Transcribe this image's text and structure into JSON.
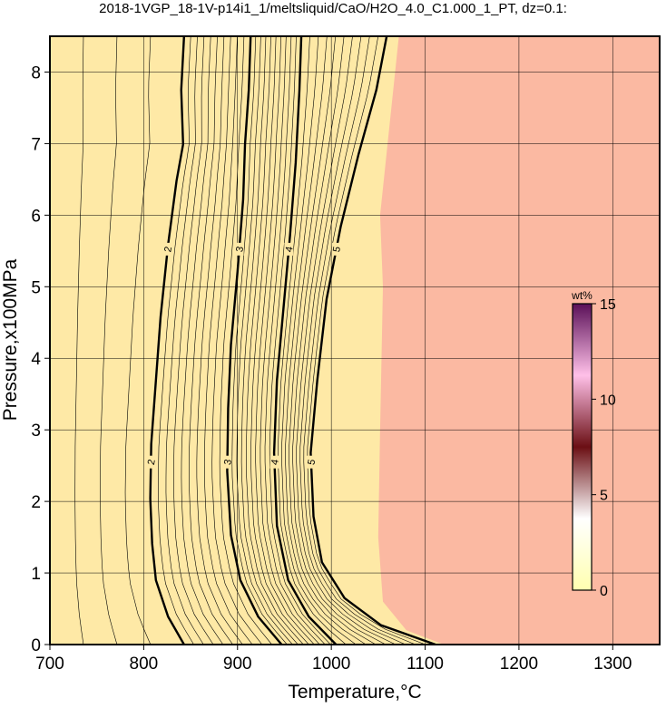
{
  "chart_data": {
    "type": "contour",
    "title": "2018-1VGP_18-1V-p14i1_1/meltsliquid/CaO/H2O_4.0_C1.000_1_PT, dz=0.1:",
    "x_label": "Temperature,°C",
    "y_label": "Pressure,x100MPa",
    "xlim": [
      700,
      1350
    ],
    "ylim": [
      0,
      8.5
    ],
    "xticks": [
      700,
      800,
      900,
      1000,
      1100,
      1200,
      1300
    ],
    "yticks": [
      0,
      1,
      2,
      3,
      4,
      5,
      6,
      7,
      8
    ],
    "grid": true,
    "low_color": "#fee9a6",
    "high_color": "#fbb9a2",
    "region_boundary": {
      "x": [
        1120,
        1080,
        1055,
        1050,
        1052,
        1055,
        1052,
        1060,
        1072
      ],
      "y": [
        0,
        0.2,
        0.6,
        1.5,
        3,
        5,
        6,
        7,
        8.5
      ]
    },
    "series": [
      {
        "name": "2",
        "color": "#000000",
        "x": [
          843,
          826,
          813,
          809,
          807,
          808,
          813,
          818,
          826,
          835,
          842,
          840,
          843
        ],
        "y": [
          0,
          0.39,
          0.9,
          1.41,
          2.04,
          2.8,
          3.69,
          4.58,
          5.59,
          6.48,
          6.99,
          7.75,
          8.5
        ]
      },
      {
        "name": "3",
        "color": "#000000",
        "x": [
          947,
          922,
          903,
          893,
          889,
          890,
          893,
          900,
          906,
          908,
          912,
          914
        ],
        "y": [
          0,
          0.39,
          0.9,
          1.53,
          2.42,
          3.3,
          4.19,
          5.21,
          6.22,
          6.99,
          7.75,
          8.5
        ]
      },
      {
        "name": "4",
        "color": "#000000",
        "x": [
          1005,
          976,
          954,
          942,
          939,
          942,
          949,
          956,
          962,
          966,
          968
        ],
        "y": [
          0,
          0.39,
          0.9,
          1.66,
          2.68,
          3.69,
          4.7,
          5.72,
          6.73,
          7.75,
          8.5
        ]
      },
      {
        "name": "5",
        "color": "#000000",
        "x": [
          1111,
          1053,
          1014,
          990,
          981,
          978,
          985,
          995,
          1010,
          1029,
          1048,
          1059
        ],
        "y": [
          0,
          0.27,
          0.65,
          1.15,
          1.79,
          2.68,
          3.69,
          4.83,
          5.84,
          6.85,
          7.75,
          8.5
        ]
      }
    ],
    "colorbar": {
      "label": "wt%",
      "clim": [
        0,
        15
      ],
      "ticks": [
        0,
        5,
        10,
        15
      ],
      "colors": [
        "#ffffb0",
        "#ffffff",
        "#6b0f14",
        "#ffc0e8",
        "#5a1058"
      ]
    }
  }
}
